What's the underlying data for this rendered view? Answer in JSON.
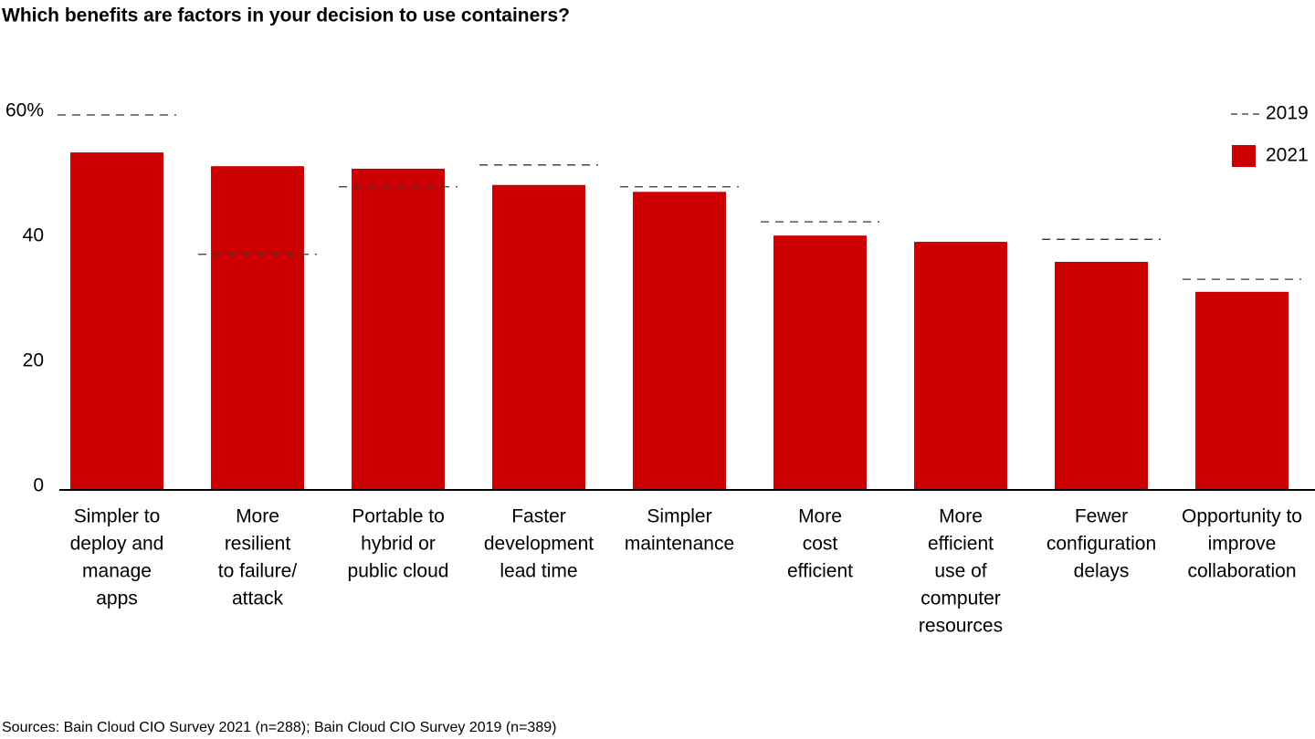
{
  "chart_data": {
    "type": "bar",
    "title": "Which benefits are factors in your decision to use containers?",
    "source": "Sources: Bain Cloud CIO Survey 2021 (n=288); Bain Cloud CIO Survey 2019 (n=389)",
    "categories": [
      [
        "Simpler to",
        "deploy and",
        "manage",
        "apps"
      ],
      [
        "More",
        "resilient",
        "to failure/",
        "attack"
      ],
      [
        "Portable to",
        "hybrid or",
        "public cloud"
      ],
      [
        "Faster",
        "development",
        "lead time"
      ],
      [
        "Simpler",
        "maintenance"
      ],
      [
        "More",
        "cost",
        "efficient"
      ],
      [
        "More",
        "efficient",
        "use of",
        "computer",
        "resources"
      ],
      [
        "Fewer",
        "configuration",
        "delays"
      ],
      [
        "Opportunity to",
        "improve",
        "collaboration"
      ]
    ],
    "series": [
      {
        "name": "2019",
        "color": "#333333",
        "marker": "dash",
        "values": [
          60,
          37.7,
          48.5,
          52.0,
          48.5,
          42.9,
          null,
          40.1,
          33.7
        ]
      },
      {
        "name": "2021",
        "color": "#cc0000",
        "marker": "bar",
        "values": [
          54.0,
          51.8,
          51.4,
          48.8,
          47.7,
          40.7,
          39.7,
          36.5,
          31.7
        ]
      }
    ],
    "ylim": [
      0,
      60
    ],
    "yticks": [
      0,
      20,
      40,
      {
        "value": 60,
        "label": "60%"
      }
    ],
    "grid": false,
    "legend": "top-right"
  }
}
